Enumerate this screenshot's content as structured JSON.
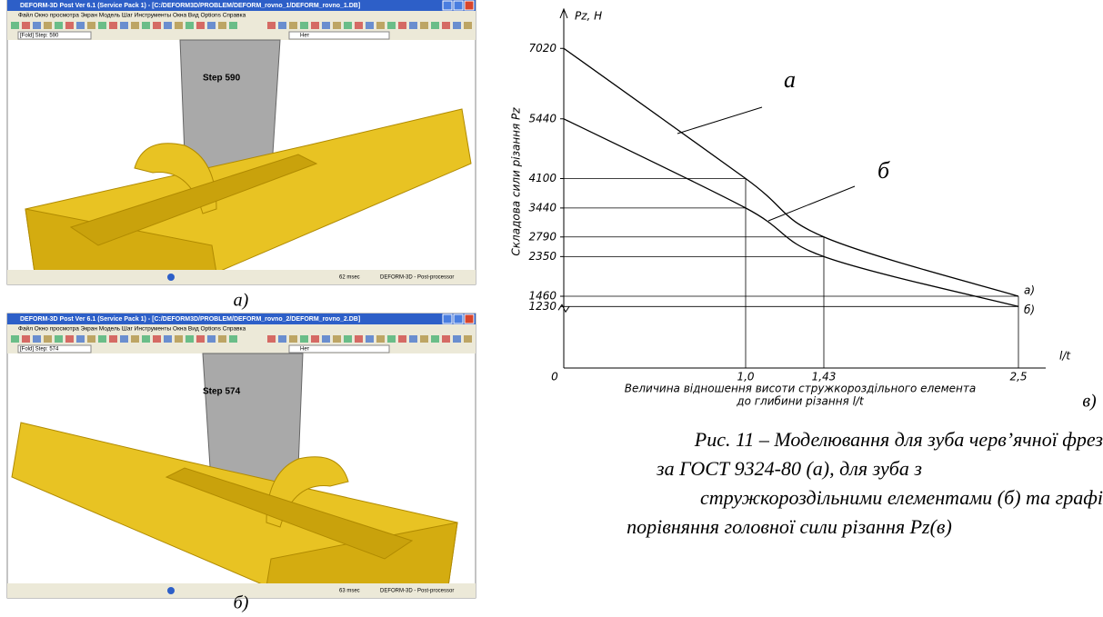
{
  "screenshots": [
    {
      "window_title": "DEFORM-3D Post Ver 6.1 (Service Pack 1) - [C:/DEFORM3D/PROBLEM/DEFORM_rovno_1/DEFORM_rovno_1.DB]",
      "menu": "Файл Окно просмотра Экран Модель Шаг Инструменты Окна Вид Options Справка",
      "step_select": "[Fold] Step: 590",
      "view_select": "Нет",
      "step_label": "Step 590",
      "status_time": "62 msec",
      "status_app": "DEFORM-3D - Post-processor",
      "panel_label": "а)"
    },
    {
      "window_title": "DEFORM-3D Post Ver 6.1 (Service Pack 1) - [C:/DEFORM3D/PROBLEM/DEFORM_rovno_2/DEFORM_rovno_2.DB]",
      "menu": "Файл Окно просмотра Экран Модель Шаг Инструменты Окна Вид Options Справка",
      "step_select": "[Fold] Step: 574",
      "view_select": "Нет",
      "step_label": "Step 574",
      "status_time": "63 msec",
      "status_app": "DEFORM-3D - Post-processor",
      "panel_label": "б)"
    }
  ],
  "chart_data": {
    "type": "line",
    "y_label": "Pz, H",
    "y_axis_title": "Складова сили різання Pz",
    "x_label": "l/t",
    "x_axis_title": [
      "Величина відношення висоти стружкороздільного елемента",
      "до глибини різання l/t"
    ],
    "panel_label": "в)",
    "x": [
      0,
      1.0,
      1.43,
      2.5
    ],
    "series": [
      {
        "name": "а",
        "end_label": "а)",
        "color": "#000000",
        "values": [
          7020,
          4100,
          2790,
          1460
        ]
      },
      {
        "name": "б",
        "end_label": "б)",
        "color": "#000000",
        "values": [
          5440,
          3440,
          2350,
          1230
        ]
      }
    ],
    "xlim": [
      0,
      2.65
    ],
    "xticks": [
      0,
      {
        "value": 1.0,
        "label": "1,0"
      },
      {
        "value": 1.43,
        "label": "1,43"
      },
      {
        "value": 2.5,
        "label": "2,5"
      }
    ],
    "ylim": [
      -150,
      7800
    ],
    "yticks": [
      1230,
      1460,
      2350,
      2790,
      3440,
      4100,
      5440,
      7020
    ]
  },
  "caption": [
    "Рис. 11 – Моделювання для зуба черв’ячної фрез",
    "за ГОСТ 9324-80 (а), для зуба з",
    "стружкороздільними елементами (б) та графі",
    "порівняння головної сили різання Pz(в)"
  ]
}
